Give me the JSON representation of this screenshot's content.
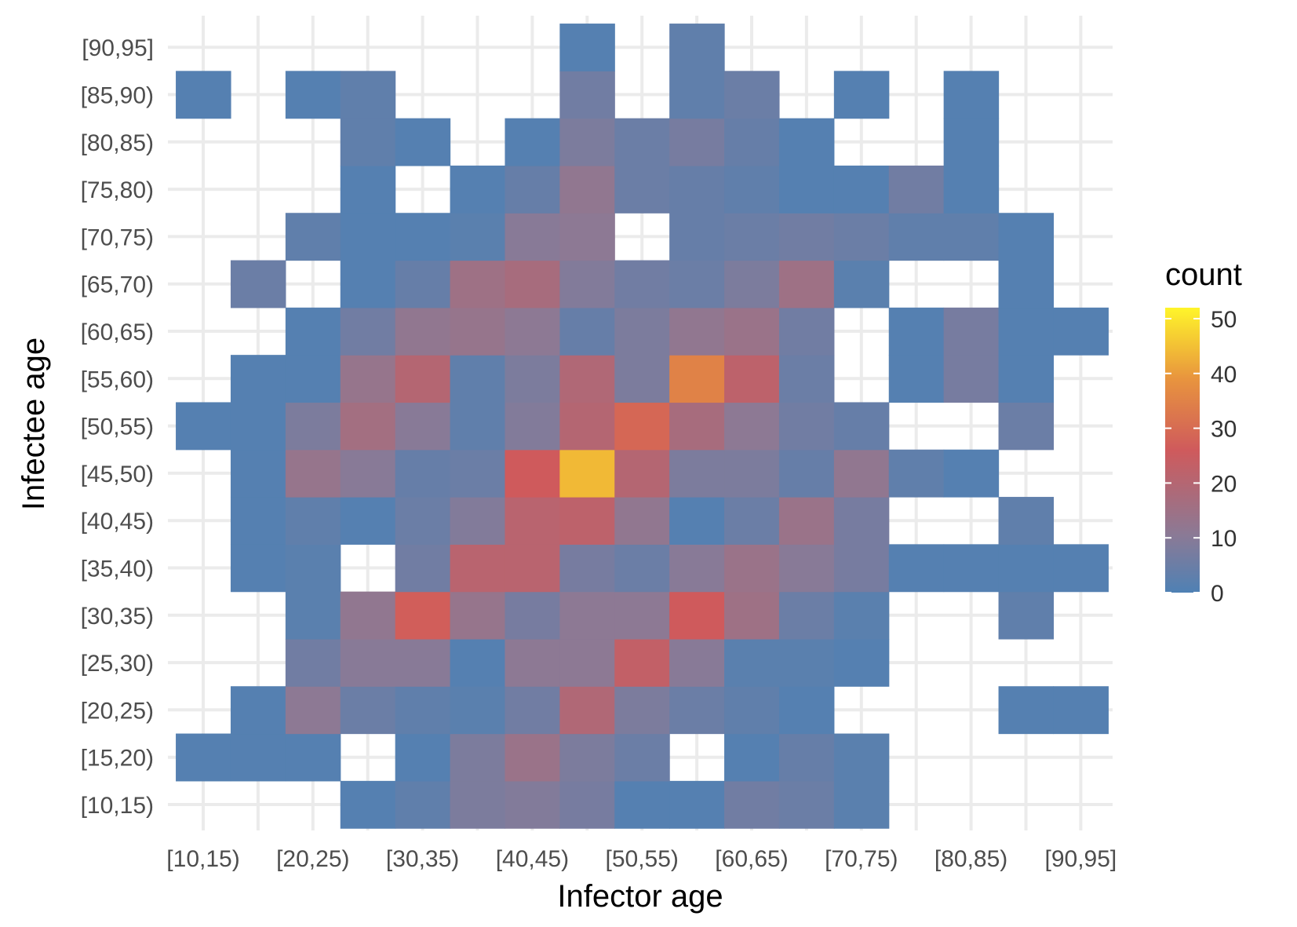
{
  "chart_data": {
    "type": "heatmap",
    "xlabel": "Infector age",
    "ylabel": "Infectee age",
    "x_categories": [
      "[10,15)",
      "[15,20)",
      "[20,25)",
      "[25,30)",
      "[30,35)",
      "[35,40)",
      "[40,45)",
      "[45,50)",
      "[50,55)",
      "[55,60)",
      "[60,65)",
      "[65,70)",
      "[70,75)",
      "[75,80)",
      "[80,85)",
      "[85,90)",
      "[90,95]"
    ],
    "x_tick_labels": [
      "[10,15)",
      "[20,25)",
      "[30,35)",
      "[40,45)",
      "[50,55)",
      "[60,65)",
      "[70,75)",
      "[80,85)",
      "[90,95]"
    ],
    "y_categories": [
      "[10,15)",
      "[15,20)",
      "[20,25)",
      "[25,30)",
      "[30,35)",
      "[35,40)",
      "[40,45)",
      "[45,50)",
      "[50,55)",
      "[55,60)",
      "[60,65)",
      "[65,70)",
      "[70,75)",
      "[75,80)",
      "[80,85)",
      "[85,90)",
      "[90,95]"
    ],
    "values": [
      [
        null,
        null,
        null,
        1,
        3,
        8,
        9,
        7,
        1,
        1,
        6,
        5,
        2,
        null,
        null,
        null,
        null
      ],
      [
        1,
        1,
        1,
        null,
        1,
        8,
        14,
        8,
        5,
        null,
        1,
        4,
        2,
        null,
        null,
        null,
        null
      ],
      [
        null,
        1,
        11,
        5,
        3,
        2,
        6,
        19,
        8,
        5,
        3,
        1,
        null,
        null,
        null,
        1,
        1
      ],
      [
        null,
        null,
        6,
        10,
        10,
        1,
        11,
        11,
        23,
        10,
        2,
        2,
        1,
        null,
        null,
        null,
        null
      ],
      [
        null,
        null,
        2,
        12,
        27,
        13,
        7,
        11,
        11,
        26,
        15,
        5,
        2,
        null,
        null,
        3,
        null
      ],
      [
        null,
        1,
        2,
        null,
        6,
        21,
        21,
        7,
        5,
        10,
        14,
        10,
        7,
        1,
        1,
        1,
        1
      ],
      [
        null,
        1,
        3,
        1,
        5,
        9,
        21,
        22,
        12,
        1,
        5,
        14,
        7,
        null,
        null,
        3,
        null
      ],
      [
        null,
        1,
        13,
        10,
        4,
        5,
        26,
        44,
        20,
        8,
        8,
        4,
        12,
        3,
        1,
        null,
        null
      ],
      [
        1,
        1,
        8,
        16,
        10,
        3,
        9,
        20,
        29,
        17,
        11,
        6,
        4,
        null,
        null,
        5,
        null
      ],
      [
        null,
        1,
        1,
        13,
        20,
        3,
        8,
        19,
        8,
        35,
        22,
        5,
        null,
        1,
        7,
        1,
        null
      ],
      [
        null,
        null,
        1,
        6,
        12,
        13,
        11,
        4,
        8,
        12,
        14,
        6,
        null,
        1,
        7,
        1,
        1
      ],
      [
        null,
        5,
        null,
        1,
        4,
        15,
        17,
        9,
        6,
        5,
        8,
        15,
        2,
        null,
        null,
        1,
        null
      ],
      [
        null,
        null,
        3,
        1,
        1,
        2,
        10,
        11,
        null,
        4,
        5,
        6,
        5,
        3,
        3,
        1,
        null
      ],
      [
        null,
        null,
        null,
        1,
        null,
        1,
        4,
        12,
        5,
        4,
        3,
        1,
        1,
        6,
        1,
        null,
        null
      ],
      [
        null,
        null,
        null,
        3,
        1,
        null,
        1,
        8,
        5,
        7,
        4,
        1,
        null,
        null,
        1,
        null,
        null
      ],
      [
        1,
        null,
        1,
        3,
        null,
        null,
        null,
        6,
        null,
        3,
        5,
        null,
        1,
        null,
        1,
        null,
        null
      ],
      [
        null,
        null,
        null,
        null,
        null,
        null,
        null,
        1,
        null,
        3,
        null,
        null,
        null,
        null,
        null,
        null,
        null
      ]
    ],
    "legend": {
      "title": "count",
      "ticks": [
        0,
        10,
        20,
        30,
        40,
        50
      ],
      "min": 0,
      "max": 52,
      "position": "right"
    },
    "grid": true,
    "colors": {
      "low": "#4f81b4",
      "mid1": "#8a7a96",
      "mid2": "#cf5a5c",
      "mid3": "#e8943e",
      "high": "#fff52a"
    }
  }
}
